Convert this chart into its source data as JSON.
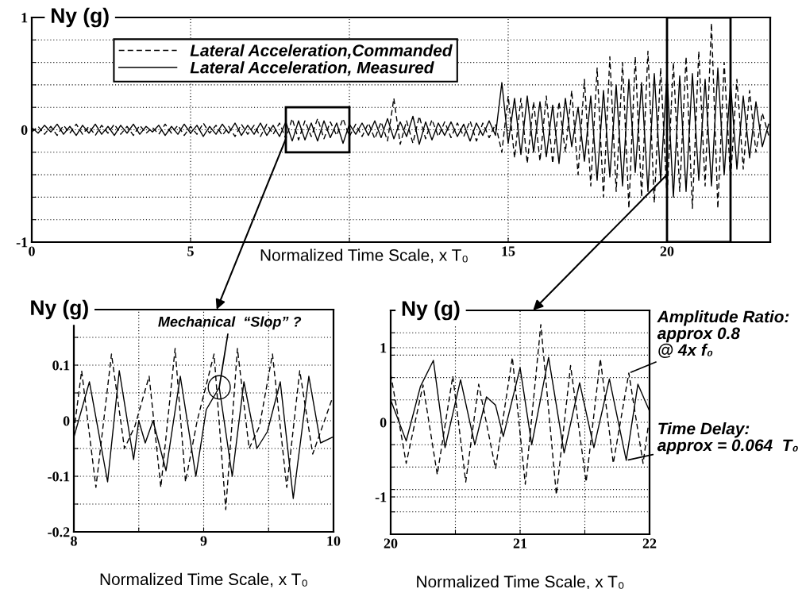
{
  "chart_data": [
    {
      "type": "line",
      "ylabel": "Ny (g)",
      "xlabel": "Normalized Time Scale, x T₀",
      "xlim": [
        0,
        23.25
      ],
      "xticks": [
        0,
        5,
        {
          "value": 10,
          "label": null
        },
        15,
        20
      ],
      "ylim": [
        -1,
        1
      ],
      "yticks": [
        -1,
        {
          "value": -0.8,
          "label": null
        },
        {
          "value": -0.6,
          "label": null
        },
        {
          "value": -0.4,
          "label": null
        },
        {
          "value": -0.2,
          "label": null
        },
        0,
        {
          "value": 0.2,
          "label": null
        },
        {
          "value": 0.4,
          "label": null
        },
        {
          "value": 0.6,
          "label": null
        },
        {
          "value": 0.8,
          "label": null
        },
        1
      ],
      "grid": true,
      "legend": "top left",
      "marker": "none",
      "x": [
        0,
        0.2,
        0.4,
        0.6,
        0.8,
        1,
        1.2,
        1.4,
        1.6,
        1.8,
        2,
        2.2,
        2.4,
        2.6,
        2.8,
        3,
        3.2,
        3.4,
        3.6,
        3.8,
        4,
        4.2,
        4.4,
        4.6,
        4.8,
        5,
        5.2,
        5.4,
        5.6,
        5.8,
        6,
        6.2,
        6.4,
        6.6,
        6.8,
        7,
        7.2,
        7.4,
        7.6,
        7.8,
        8,
        8.2,
        8.4,
        8.6,
        8.8,
        9,
        9.2,
        9.4,
        9.6,
        9.8,
        10,
        10.2,
        10.4,
        10.6,
        10.8,
        11,
        11.2,
        11.4,
        11.6,
        11.8,
        12,
        12.2,
        12.4,
        12.6,
        12.8,
        13,
        13.2,
        13.4,
        13.6,
        13.8,
        14,
        14.2,
        14.4,
        14.6,
        14.8,
        15,
        15.2,
        15.4,
        15.6,
        15.8,
        16,
        16.2,
        16.4,
        16.6,
        16.8,
        17,
        17.2,
        17.4,
        17.6,
        17.8,
        18,
        18.2,
        18.4,
        18.6,
        18.8,
        19,
        19.2,
        19.4,
        19.6,
        19.8,
        20,
        20.2,
        20.4,
        20.6,
        20.8,
        21,
        21.2,
        21.4,
        21.6,
        21.8,
        22,
        22.2,
        22.4,
        22.6,
        22.8,
        23,
        23.2
      ],
      "series": [
        {
          "name": "Lateral Acceleration,Commanded",
          "color": "#000000",
          "line_style": "dashed",
          "values": [
            -0.02,
            0.03,
            -0.04,
            0.03,
            -0.05,
            0.04,
            -0.03,
            0.05,
            -0.04,
            0.03,
            -0.05,
            0.04,
            -0.03,
            0.05,
            -0.04,
            0.03,
            -0.05,
            0.04,
            -0.03,
            0.02,
            -0.04,
            0.05,
            -0.03,
            0.04,
            -0.05,
            0.03,
            -0.04,
            0.06,
            -0.03,
            0.04,
            -0.05,
            0.03,
            -0.06,
            0.05,
            -0.04,
            0.04,
            -0.06,
            0.05,
            -0.04,
            0.06,
            -0.08,
            0.1,
            -0.09,
            0.08,
            -0.06,
            0.1,
            -0.08,
            0.07,
            -0.05,
            0.1,
            -0.06,
            0.05,
            -0.06,
            0.06,
            -0.08,
            0.07,
            -0.1,
            0.28,
            -0.13,
            0.08,
            -0.12,
            0.12,
            -0.08,
            0.09,
            -0.06,
            0.07,
            -0.07,
            0.06,
            -0.06,
            0.08,
            -0.1,
            0.06,
            -0.07,
            0.05,
            -0.2,
            0.3,
            -0.25,
            0.28,
            -0.3,
            0.25,
            -0.28,
            0.3,
            -0.3,
            0.25,
            -0.2,
            0.35,
            -0.4,
            0.45,
            -0.5,
            0.55,
            -0.6,
            0.65,
            -0.55,
            0.6,
            -0.7,
            0.65,
            -0.6,
            0.7,
            -0.65,
            0.55,
            -0.6,
            0.6,
            -0.55,
            0.65,
            -0.7,
            0.7,
            -0.5,
            0.95,
            -0.7,
            0.6,
            -0.45,
            0.45,
            -0.35,
            0.35,
            -0.2,
            0.15,
            -0.05
          ]
        },
        {
          "name": "Lateral Acceleration, Measured",
          "color": "#000000",
          "line_style": "solid",
          "values": [
            0.02,
            -0.03,
            0.04,
            -0.02,
            0.05,
            -0.04,
            0.03,
            -0.05,
            0.04,
            -0.03,
            0.05,
            -0.04,
            0.03,
            -0.05,
            0.04,
            -0.03,
            0.05,
            -0.04,
            0.03,
            -0.02,
            0.04,
            -0.05,
            0.03,
            -0.04,
            0.05,
            -0.03,
            0.04,
            -0.06,
            0.03,
            -0.04,
            0.05,
            -0.03,
            0.06,
            -0.05,
            0.04,
            -0.04,
            0.06,
            -0.05,
            0.04,
            -0.06,
            0.07,
            -0.1,
            0.08,
            -0.09,
            0.06,
            -0.1,
            0.08,
            -0.07,
            0.06,
            -0.12,
            0.05,
            -0.04,
            0.06,
            -0.05,
            0.08,
            -0.07,
            0.1,
            -0.08,
            0.07,
            -0.06,
            0.12,
            -0.13,
            0.07,
            -0.09,
            0.06,
            -0.05,
            0.07,
            -0.06,
            0.05,
            -0.1,
            0.06,
            -0.05,
            0.08,
            -0.05,
            0.42,
            -0.12,
            0.28,
            -0.22,
            0.3,
            -0.2,
            0.25,
            -0.24,
            0.22,
            -0.3,
            0.28,
            -0.15,
            0.2,
            -0.28,
            0.3,
            -0.45,
            0.35,
            -0.42,
            0.4,
            -0.5,
            0.45,
            -0.38,
            0.42,
            -0.55,
            0.5,
            -0.45,
            0.5,
            -0.6,
            0.48,
            -0.55,
            0.5,
            -0.45,
            0.45,
            -0.5,
            0.55,
            -0.4,
            0.42,
            -0.35,
            0.3,
            -0.25,
            0.25,
            -0.15,
            0.05
          ]
        }
      ]
    },
    {
      "type": "line",
      "ylabel": "Ny (g)",
      "xlabel": "Normalized Time Scale, x T₀",
      "xlim": [
        8,
        10
      ],
      "xticks": [
        8,
        {
          "value": 8.5,
          "label": null
        },
        9,
        {
          "value": 9.5,
          "label": null
        },
        10
      ],
      "ylim": [
        -0.2,
        0.2
      ],
      "yticks": [
        -0.2,
        {
          "value": -0.15,
          "label": null
        },
        -0.1,
        {
          "value": -0.05,
          "label": null
        },
        0,
        {
          "value": 0.05,
          "label": null
        },
        0.1,
        {
          "value": 0.15,
          "label": null
        }
      ],
      "grid": true,
      "marker": "none",
      "annotations": [
        {
          "text": "Mechanical  “Slop” ?",
          "x": 9.12,
          "y": 0.06
        }
      ],
      "series": [
        {
          "color": "#000000",
          "line_style": "dashed",
          "x": [
            8.0,
            8.06,
            8.17,
            8.29,
            8.39,
            8.47,
            8.58,
            8.67,
            8.78,
            8.86,
            8.95,
            9.08,
            9.17,
            9.26,
            9.35,
            9.43,
            9.53,
            9.64,
            9.74,
            9.84,
            9.99
          ],
          "values": [
            -0.02,
            0.09,
            -0.12,
            0.12,
            -0.05,
            -0.01,
            0.08,
            -0.12,
            0.13,
            -0.11,
            0.0,
            0.12,
            -0.16,
            0.13,
            -0.05,
            -0.01,
            0.12,
            -0.12,
            0.09,
            -0.06,
            0.04
          ]
        },
        {
          "color": "#000000",
          "line_style": "solid",
          "x": [
            8.0,
            8.12,
            8.26,
            8.35,
            8.46,
            8.5,
            8.55,
            8.61,
            8.71,
            8.82,
            8.94,
            9.02,
            9.12,
            9.22,
            9.31,
            9.41,
            9.49,
            9.59,
            9.69,
            9.81,
            9.9,
            9.99
          ],
          "values": [
            -0.03,
            0.07,
            -0.11,
            0.09,
            -0.07,
            0.0,
            -0.04,
            0.0,
            -0.09,
            0.08,
            -0.1,
            0.02,
            0.06,
            -0.1,
            0.07,
            -0.05,
            -0.02,
            0.07,
            -0.14,
            0.08,
            -0.04,
            -0.03
          ]
        }
      ]
    },
    {
      "type": "line",
      "ylabel": "Ny (g)",
      "xlabel": "Normalized Time Scale, x T₀",
      "xlim": [
        20,
        22
      ],
      "xticks": [
        20,
        {
          "value": 20.5,
          "label": null
        },
        21,
        {
          "value": 21.5,
          "label": null
        },
        22
      ],
      "ylim": [
        -1.5,
        1.5
      ],
      "yticks": [
        {
          "value": -1.2,
          "label": null
        },
        -1,
        {
          "value": -0.9,
          "label": null
        },
        {
          "value": -0.6,
          "label": null
        },
        {
          "value": -0.3,
          "label": null
        },
        0,
        {
          "value": 0.3,
          "label": null
        },
        {
          "value": 0.6,
          "label": null
        },
        {
          "value": 0.9,
          "label": null
        },
        1,
        {
          "value": 1.2,
          "label": null
        }
      ],
      "grid": true,
      "marker": "none",
      "annotations": [
        {
          "text": "Amplitude Ratio:\napprox 0.8\n@ 4x f₀",
          "x": 21.84,
          "y": 0.66
        },
        {
          "text": "Time Delay:\napprox = 0.064  T₀",
          "x": 21.82,
          "y": -0.51
        }
      ],
      "series": [
        {
          "color": "#000000",
          "line_style": "dashed",
          "x": [
            20.0,
            20.12,
            20.25,
            20.36,
            20.48,
            20.58,
            20.68,
            20.81,
            20.94,
            21.04,
            21.16,
            21.28,
            21.39,
            21.51,
            21.62,
            21.72,
            21.84,
            21.95,
            21.99
          ],
          "values": [
            0.65,
            -0.55,
            0.5,
            -0.7,
            0.62,
            -0.8,
            0.51,
            -0.62,
            0.87,
            -0.83,
            1.31,
            -0.97,
            0.76,
            -0.8,
            0.85,
            -0.55,
            0.66,
            -0.55,
            -0.05
          ]
        },
        {
          "color": "#000000",
          "line_style": "solid",
          "x": [
            20.0,
            20.12,
            20.23,
            20.33,
            20.42,
            20.54,
            20.65,
            20.74,
            20.81,
            20.87,
            21.0,
            21.09,
            21.22,
            21.34,
            21.46,
            21.57,
            21.69,
            21.82,
            21.91,
            22.0
          ],
          "values": [
            0.3,
            -0.25,
            0.48,
            0.83,
            -0.34,
            0.57,
            -0.3,
            0.34,
            0.23,
            -0.19,
            0.73,
            -0.3,
            0.87,
            -0.41,
            0.53,
            -0.34,
            0.58,
            -0.51,
            0.51,
            0.15
          ]
        }
      ]
    }
  ]
}
